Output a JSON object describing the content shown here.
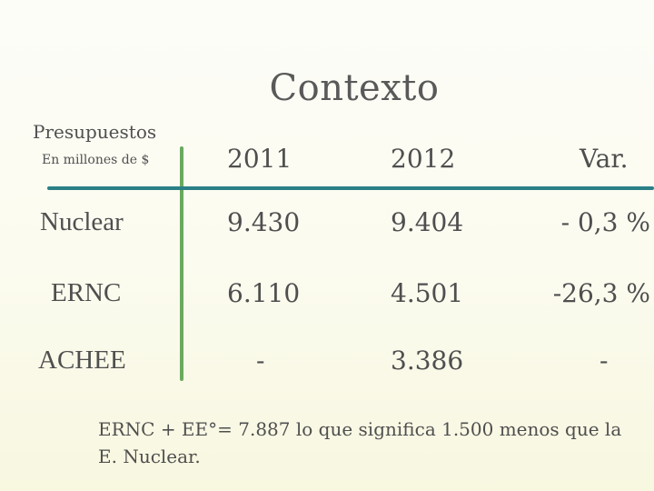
{
  "title": "Contexto",
  "corner": {
    "label": "Presupuestos",
    "unit": "En millones de $"
  },
  "table": {
    "headers": [
      "2011",
      "2012",
      "Var."
    ],
    "rows": [
      {
        "label": "Nuclear",
        "y2011": "9.430",
        "y2012": "9.404",
        "var": "- 0,3 %"
      },
      {
        "label": "ERNC",
        "y2011": "6.110",
        "y2012": "4.501",
        "var": "-26,3 %"
      },
      {
        "label": "ACHEE",
        "y2011": "-",
        "y2012": "3.386",
        "var": "-"
      }
    ]
  },
  "note": "ERNC + EE°= 7.887 lo que significa 1.500 menos que la E. Nuclear.",
  "colors": {
    "vertical_rule": "#6aa95e",
    "horizontal_rule": "#2b7f86"
  }
}
